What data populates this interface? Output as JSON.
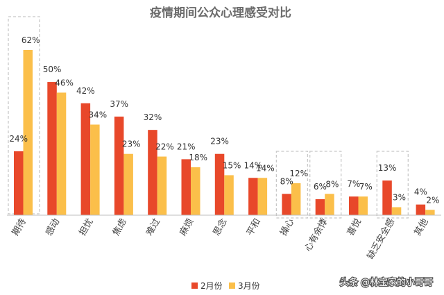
{
  "watermark": "头条 @林宝家的小哥哥",
  "colors": {
    "series_feb": "#E8482A",
    "series_mar": "#FBBF4A",
    "highlight_box": "#c8c8c8",
    "axis": "#bfbfbf"
  },
  "chart_data": {
    "type": "bar",
    "title": "疫情期间公众心理感受对比",
    "xlabel": "",
    "ylabel": "",
    "ylim": [
      0,
      70
    ],
    "grid": false,
    "legend_position": "bottom",
    "categories": [
      "期待",
      "感动",
      "担忧",
      "焦虑",
      "难过",
      "麻烦",
      "思念",
      "平和",
      "操心",
      "心有余悸",
      "喜悦",
      "缺乏安全感",
      "其他"
    ],
    "series": [
      {
        "name": "2月份",
        "values": [
          24,
          50,
          42,
          37,
          32,
          21,
          23,
          14,
          8,
          6,
          7,
          13,
          4
        ],
        "labels": [
          "24%",
          "50%",
          "42%",
          "37%",
          "32%",
          "21%",
          "23%",
          "14%",
          "8%",
          "6%",
          "7%",
          "13%",
          "4%"
        ]
      },
      {
        "name": "3月份",
        "values": [
          62,
          46,
          34,
          23,
          22,
          18,
          15,
          14,
          12,
          8,
          7,
          3,
          2
        ],
        "labels": [
          "62%",
          "46%",
          "34%",
          "23%",
          "22%",
          "18%",
          "15%",
          "14%",
          "12%",
          "8%",
          "7%",
          "3%",
          "2%"
        ]
      }
    ],
    "highlighted_categories": [
      "期待",
      "操心",
      "心有余悸",
      "缺乏安全感"
    ]
  }
}
